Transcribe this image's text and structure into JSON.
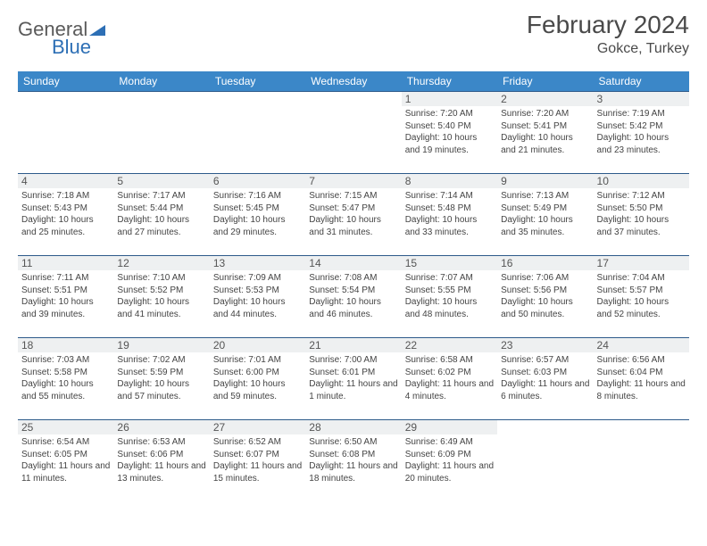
{
  "logo": {
    "text1": "General",
    "text2": "Blue"
  },
  "title": "February 2024",
  "location": "Gokce, Turkey",
  "colors": {
    "header_bg": "#3b87c8",
    "header_text": "#ffffff",
    "border": "#2d5a8a",
    "daynum_bg": "#eef0f1",
    "logo_gray": "#5a5a5a",
    "logo_blue": "#2d6fb5"
  },
  "day_names": [
    "Sunday",
    "Monday",
    "Tuesday",
    "Wednesday",
    "Thursday",
    "Friday",
    "Saturday"
  ],
  "weeks": [
    [
      null,
      null,
      null,
      null,
      {
        "n": "1",
        "sr": "7:20 AM",
        "ss": "5:40 PM",
        "dl": "10 hours and 19 minutes."
      },
      {
        "n": "2",
        "sr": "7:20 AM",
        "ss": "5:41 PM",
        "dl": "10 hours and 21 minutes."
      },
      {
        "n": "3",
        "sr": "7:19 AM",
        "ss": "5:42 PM",
        "dl": "10 hours and 23 minutes."
      }
    ],
    [
      {
        "n": "4",
        "sr": "7:18 AM",
        "ss": "5:43 PM",
        "dl": "10 hours and 25 minutes."
      },
      {
        "n": "5",
        "sr": "7:17 AM",
        "ss": "5:44 PM",
        "dl": "10 hours and 27 minutes."
      },
      {
        "n": "6",
        "sr": "7:16 AM",
        "ss": "5:45 PM",
        "dl": "10 hours and 29 minutes."
      },
      {
        "n": "7",
        "sr": "7:15 AM",
        "ss": "5:47 PM",
        "dl": "10 hours and 31 minutes."
      },
      {
        "n": "8",
        "sr": "7:14 AM",
        "ss": "5:48 PM",
        "dl": "10 hours and 33 minutes."
      },
      {
        "n": "9",
        "sr": "7:13 AM",
        "ss": "5:49 PM",
        "dl": "10 hours and 35 minutes."
      },
      {
        "n": "10",
        "sr": "7:12 AM",
        "ss": "5:50 PM",
        "dl": "10 hours and 37 minutes."
      }
    ],
    [
      {
        "n": "11",
        "sr": "7:11 AM",
        "ss": "5:51 PM",
        "dl": "10 hours and 39 minutes."
      },
      {
        "n": "12",
        "sr": "7:10 AM",
        "ss": "5:52 PM",
        "dl": "10 hours and 41 minutes."
      },
      {
        "n": "13",
        "sr": "7:09 AM",
        "ss": "5:53 PM",
        "dl": "10 hours and 44 minutes."
      },
      {
        "n": "14",
        "sr": "7:08 AM",
        "ss": "5:54 PM",
        "dl": "10 hours and 46 minutes."
      },
      {
        "n": "15",
        "sr": "7:07 AM",
        "ss": "5:55 PM",
        "dl": "10 hours and 48 minutes."
      },
      {
        "n": "16",
        "sr": "7:06 AM",
        "ss": "5:56 PM",
        "dl": "10 hours and 50 minutes."
      },
      {
        "n": "17",
        "sr": "7:04 AM",
        "ss": "5:57 PM",
        "dl": "10 hours and 52 minutes."
      }
    ],
    [
      {
        "n": "18",
        "sr": "7:03 AM",
        "ss": "5:58 PM",
        "dl": "10 hours and 55 minutes."
      },
      {
        "n": "19",
        "sr": "7:02 AM",
        "ss": "5:59 PM",
        "dl": "10 hours and 57 minutes."
      },
      {
        "n": "20",
        "sr": "7:01 AM",
        "ss": "6:00 PM",
        "dl": "10 hours and 59 minutes."
      },
      {
        "n": "21",
        "sr": "7:00 AM",
        "ss": "6:01 PM",
        "dl": "11 hours and 1 minute."
      },
      {
        "n": "22",
        "sr": "6:58 AM",
        "ss": "6:02 PM",
        "dl": "11 hours and 4 minutes."
      },
      {
        "n": "23",
        "sr": "6:57 AM",
        "ss": "6:03 PM",
        "dl": "11 hours and 6 minutes."
      },
      {
        "n": "24",
        "sr": "6:56 AM",
        "ss": "6:04 PM",
        "dl": "11 hours and 8 minutes."
      }
    ],
    [
      {
        "n": "25",
        "sr": "6:54 AM",
        "ss": "6:05 PM",
        "dl": "11 hours and 11 minutes."
      },
      {
        "n": "26",
        "sr": "6:53 AM",
        "ss": "6:06 PM",
        "dl": "11 hours and 13 minutes."
      },
      {
        "n": "27",
        "sr": "6:52 AM",
        "ss": "6:07 PM",
        "dl": "11 hours and 15 minutes."
      },
      {
        "n": "28",
        "sr": "6:50 AM",
        "ss": "6:08 PM",
        "dl": "11 hours and 18 minutes."
      },
      {
        "n": "29",
        "sr": "6:49 AM",
        "ss": "6:09 PM",
        "dl": "11 hours and 20 minutes."
      },
      null,
      null
    ]
  ]
}
